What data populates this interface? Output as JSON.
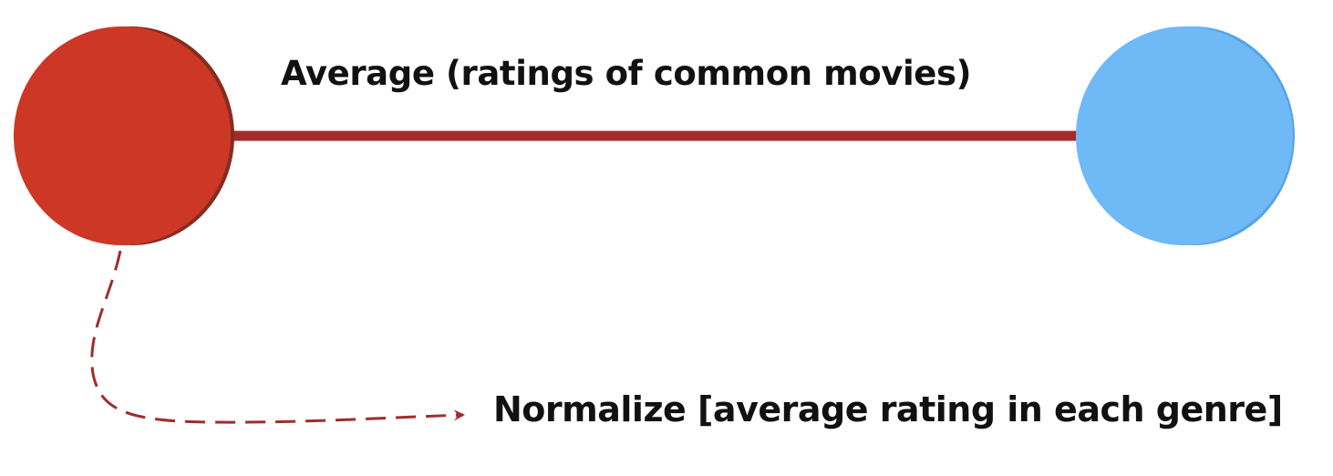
{
  "diagram": {
    "edge_label": "Average (ratings of common movies)",
    "annotation_label": "Normalize [average rating in each genre]",
    "colors": {
      "left_node": "#cd3725",
      "left_node_shadow": "#872b20",
      "right_node": "#6fb9f7",
      "right_node_shadow": "#56a3e9",
      "edge": "#a12c2c",
      "dashed_arrow": "#a12c2c",
      "text": "#111111"
    }
  }
}
